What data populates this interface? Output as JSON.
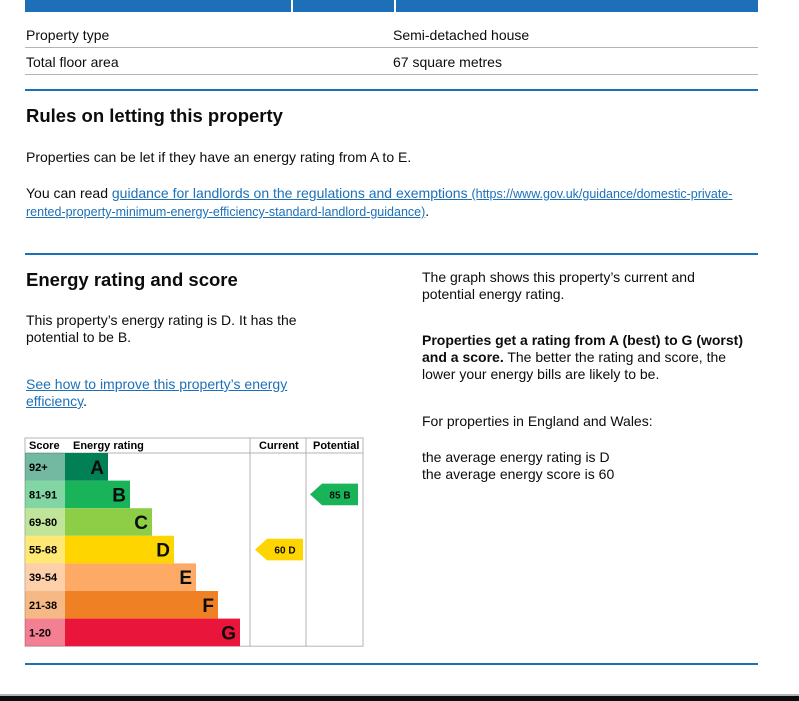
{
  "summary": {
    "rows": [
      [
        "Property type",
        "Semi-detached house"
      ],
      [
        "Total floor area",
        "67 square metres"
      ]
    ]
  },
  "letting": {
    "title": "Rules on letting this property",
    "text": "Properties can be let if they have an energy rating from A to E.",
    "read_prefix": "You can read",
    "link_text": "guidance for landlords on the regulations and exemptions",
    "link_url": "(https://www.gov.uk/guidance/domestic-private-rented-property-minimum-energy-efficiency-standard-landlord-guidance)",
    "link_end": "."
  },
  "energy": {
    "title": "Energy rating and score",
    "text": "This property’s energy rating is D. It has the potential to be B.",
    "link_text": "See how to improve this property’s energy efficiency",
    "link_end": ".",
    "chart": {
      "headers": [
        "Score",
        "Energy rating",
        "Current",
        "Potential"
      ],
      "bands": [
        {
          "range": "92+",
          "letter": "A",
          "color": "#008054"
        },
        {
          "range": "81-91",
          "letter": "B",
          "color": "#19b459"
        },
        {
          "range": "69-80",
          "letter": "C",
          "color": "#8dce46"
        },
        {
          "range": "55-68",
          "letter": "D",
          "color": "#ffd500"
        },
        {
          "range": "39-54",
          "letter": "E",
          "color": "#fcaa65"
        },
        {
          "range": "21-38",
          "letter": "F",
          "color": "#ef8023"
        },
        {
          "range": "1-20",
          "letter": "G",
          "color": "#e9153b"
        }
      ],
      "current": {
        "score": 60,
        "rating": "D"
      },
      "potential": {
        "score": 85,
        "rating": "B"
      }
    },
    "side": {
      "p1": "The graph shows this property’s current and potential energy rating.",
      "p2_bold": "Properties get a rating from A (best) to G (worst) and a score.",
      "p2_rest": "The better the rating and score, the lower your energy bills are likely to be.",
      "p3": "For properties in England and Wales:",
      "p4": "the average energy rating is D",
      "p5": "the average energy score is 60"
    }
  }
}
